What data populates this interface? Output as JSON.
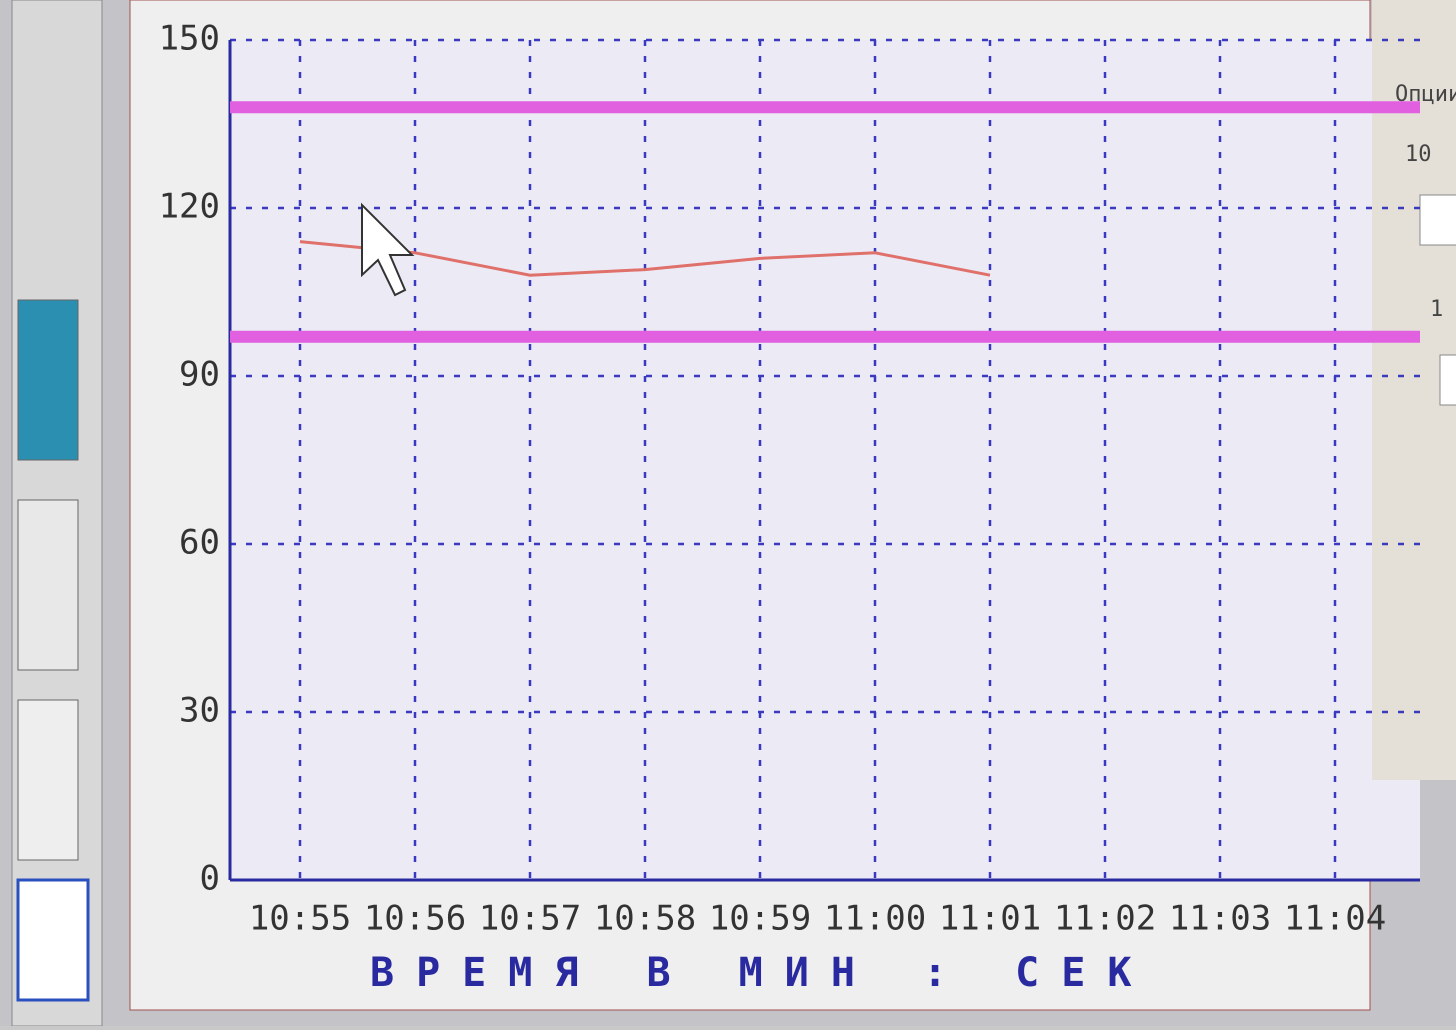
{
  "chart_data": {
    "type": "line",
    "categories": [
      "10:55",
      "10:56",
      "10:57",
      "10:58",
      "10:59",
      "11:00",
      "11:01",
      "11:02",
      "11:03",
      "11:04"
    ],
    "series": [
      {
        "color": "#e0706a",
        "values": [
          114,
          112,
          108,
          109,
          111,
          112,
          108,
          null,
          null,
          null
        ]
      }
    ],
    "limits": [
      {
        "value": 138,
        "color": "#e060e0"
      },
      {
        "value": 97,
        "color": "#e060e0"
      }
    ],
    "ylim": [
      0,
      150
    ],
    "yticks": [
      0,
      30,
      60,
      90,
      120,
      150
    ],
    "grid": true,
    "xlabel": "ВРЕМЯ В МИН : СЕК"
  },
  "panel": {
    "title": "Опции",
    "labels": [
      "10",
      "1"
    ]
  }
}
